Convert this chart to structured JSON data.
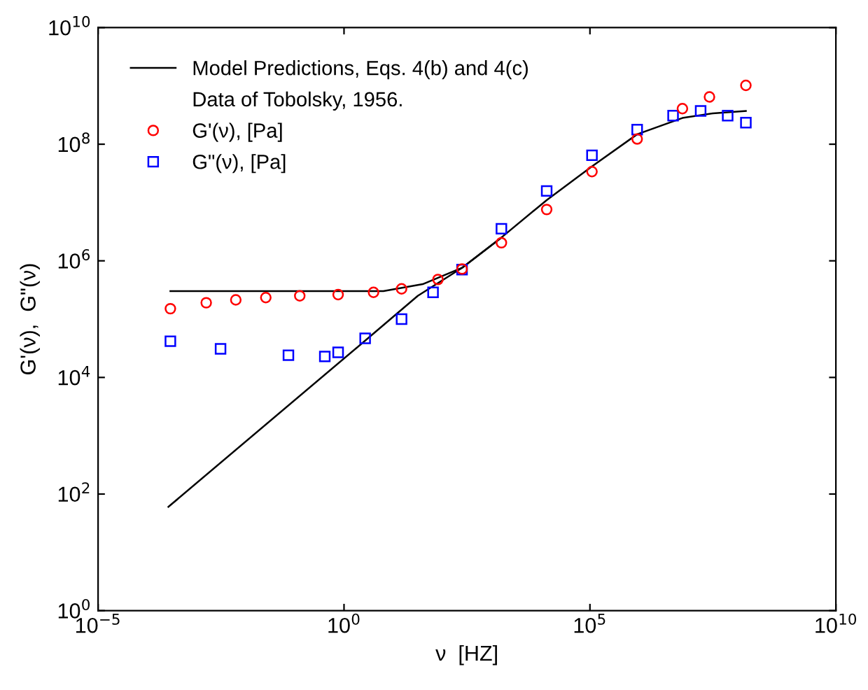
{
  "chart_data": {
    "type": "line",
    "xlabel": "ν  [HZ]",
    "ylabel": "G'(ν),  G\"(ν)",
    "log": "xy",
    "xlim": [
      1e-05,
      10000000000.0
    ],
    "ylim": [
      1,
      10000000000.0
    ],
    "xticks": [
      {
        "value": 1e-05,
        "label": "10$^{−5}$"
      },
      {
        "value": 1,
        "label": "10$^{0}$"
      },
      {
        "value": 100000.0,
        "label": "10$^{5}$"
      },
      {
        "value": 10000000000.0,
        "label": "10$^{10}$"
      }
    ],
    "yticks": [
      {
        "value": 1,
        "label": "10$^{0}$"
      },
      {
        "value": 100,
        "label": "10$^{2}$"
      },
      {
        "value": 10000.0,
        "label": "10$^{4}$"
      },
      {
        "value": 1000000.0,
        "label": "10$^{6}$"
      },
      {
        "value": 100000000.0,
        "label": "10$^{8}$"
      },
      {
        "value": 10000000000.0,
        "label": "10$^{10}$"
      }
    ],
    "grid": false,
    "legend": "top left",
    "annotations": [
      "Data of Tobolsky, 1956."
    ],
    "series": [
      {
        "name": "Model Predictions, Eqs. 4(b) and 4(c)",
        "color": "#000000",
        "marker": "none",
        "x": [
          0.000295,
          6.31,
          39.8,
          251,
          1585,
          13200,
          110000,
          912000,
          7590000.0,
          31600000.0,
          148000000.0
        ],
        "values": [
          302000.0,
          302000.0,
          398000.0,
          759000.0,
          2510000.0,
          11000000.0,
          41700000.0,
          148000000.0,
          282000000.0,
          339000000.0,
          372000000.0
        ]
      },
      {
        "color": "#000000",
        "marker": "none",
        "x": [
          0.000269,
          4.07,
          31.6,
          251,
          1585
        ],
        "values": [
          60.3,
          57500,
          251000.0,
          759000.0,
          2510000.0
        ]
      },
      {
        "name": "G'(ν), [Pa]",
        "type": "scatter",
        "color": "#ff0000",
        "marker": "circle",
        "x": [
          0.000295,
          0.00158,
          0.00631,
          0.0257,
          0.126,
          0.759,
          3.98,
          14.8,
          81.3,
          251,
          1585,
          13200,
          110000,
          912000,
          7590000.0,
          26900000.0,
          148000000.0
        ],
        "values": [
          151000.0,
          191000.0,
          214000.0,
          234000.0,
          251000.0,
          263000.0,
          288000.0,
          331000.0,
          479000.0,
          724000.0,
          2040000.0,
          7590000.0,
          33900000.0,
          123000000.0,
          407000000.0,
          646000000.0,
          1020000000.0
        ]
      },
      {
        "name": "G\"(ν), [Pa]",
        "type": "scatter",
        "color": "#0000ff",
        "marker": "square",
        "x": [
          0.000295,
          0.00309,
          0.0741,
          0.407,
          0.759,
          2.69,
          14.8,
          64.6,
          251,
          1585,
          13200,
          110000,
          912000,
          4900000.0,
          17800000.0,
          63100000.0,
          148000000.0
        ],
        "values": [
          41700,
          30900,
          24000,
          22900,
          26900,
          46800,
          100000.0,
          288000.0,
          708000.0,
          3550000.0,
          15800000.0,
          64600000.0,
          178000000.0,
          309000000.0,
          372000000.0,
          309000000.0,
          234000000.0
        ]
      }
    ]
  }
}
